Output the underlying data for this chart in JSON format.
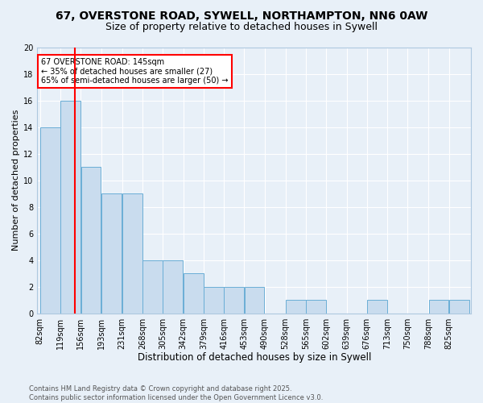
{
  "title1": "67, OVERSTONE ROAD, SYWELL, NORTHAMPTON, NN6 0AW",
  "title2": "Size of property relative to detached houses in Sywell",
  "xlabel": "Distribution of detached houses by size in Sywell",
  "ylabel": "Number of detached properties",
  "bin_labels": [
    "82sqm",
    "119sqm",
    "156sqm",
    "193sqm",
    "231sqm",
    "268sqm",
    "305sqm",
    "342sqm",
    "379sqm",
    "416sqm",
    "453sqm",
    "490sqm",
    "528sqm",
    "565sqm",
    "602sqm",
    "639sqm",
    "676sqm",
    "713sqm",
    "750sqm",
    "788sqm",
    "825sqm"
  ],
  "bin_left_edges": [
    82,
    119,
    156,
    193,
    231,
    268,
    305,
    342,
    379,
    416,
    453,
    490,
    528,
    565,
    602,
    639,
    676,
    713,
    750,
    788,
    825
  ],
  "heights": [
    14,
    16,
    11,
    9,
    9,
    4,
    4,
    3,
    2,
    2,
    2,
    0,
    1,
    1,
    0,
    0,
    1,
    0,
    0,
    1,
    1
  ],
  "bar_color": "#c9dcee",
  "bar_edge_color": "#6aaed6",
  "red_line_x": 145,
  "annotation_line1": "67 OVERSTONE ROAD: 145sqm",
  "annotation_line2": "← 35% of detached houses are smaller (27)",
  "annotation_line3": "65% of semi-detached houses are larger (50) →",
  "annotation_box_color": "white",
  "annotation_box_edge_color": "red",
  "ylim": [
    0,
    20
  ],
  "yticks": [
    0,
    2,
    4,
    6,
    8,
    10,
    12,
    14,
    16,
    18,
    20
  ],
  "background_color": "#e8f0f8",
  "grid_color": "white",
  "footer_text": "Contains HM Land Registry data © Crown copyright and database right 2025.\nContains public sector information licensed under the Open Government Licence v3.0.",
  "title1_fontsize": 10,
  "title2_fontsize": 9,
  "xlabel_fontsize": 8.5,
  "ylabel_fontsize": 8,
  "tick_fontsize": 7,
  "annotation_fontsize": 7,
  "footer_fontsize": 6
}
